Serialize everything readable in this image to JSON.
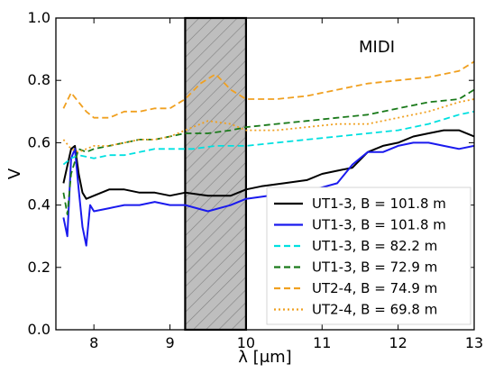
{
  "chart_data": {
    "type": "line",
    "title": "",
    "annotation": "MIDI",
    "xlabel": "λ [μm]",
    "ylabel": "V",
    "xlim": [
      7.5,
      13.0
    ],
    "ylim": [
      0.0,
      1.0
    ],
    "xticks": [
      "8",
      "9",
      "10",
      "11",
      "12",
      "13"
    ],
    "yticks": [
      "0.0",
      "0.2",
      "0.4",
      "0.6",
      "0.8",
      "1.0"
    ],
    "grid": false,
    "legend_position": "lower-right",
    "shaded_band": {
      "x_from": 9.2,
      "x_to": 10.0,
      "pattern": "hatched",
      "color": "#bebebe"
    },
    "series": [
      {
        "name": "UT1-3, B = 101.8 m",
        "color": "#000000",
        "style": "solid",
        "x": [
          7.6,
          7.7,
          7.75,
          7.8,
          7.85,
          7.9,
          8.0,
          8.2,
          8.4,
          8.6,
          8.8,
          9.0,
          9.2,
          9.5,
          9.8,
          10.0,
          10.2,
          10.5,
          10.8,
          11.0,
          11.2,
          11.4,
          11.6,
          11.8,
          12.0,
          12.2,
          12.4,
          12.6,
          12.8,
          13.0
        ],
        "y": [
          0.47,
          0.58,
          0.59,
          0.5,
          0.44,
          0.42,
          0.43,
          0.45,
          0.45,
          0.44,
          0.44,
          0.43,
          0.44,
          0.43,
          0.43,
          0.45,
          0.46,
          0.47,
          0.48,
          0.5,
          0.51,
          0.52,
          0.57,
          0.59,
          0.6,
          0.62,
          0.63,
          0.64,
          0.64,
          0.62
        ]
      },
      {
        "name": "UT1-3, B = 101.8 m",
        "color": "#1a1aee",
        "style": "solid",
        "x": [
          7.6,
          7.65,
          7.7,
          7.75,
          7.8,
          7.85,
          7.9,
          7.95,
          8.0,
          8.2,
          8.4,
          8.6,
          8.8,
          9.0,
          9.2,
          9.5,
          9.8,
          10.0,
          10.3,
          10.6,
          10.9,
          11.2,
          11.4,
          11.6,
          11.8,
          12.0,
          12.2,
          12.4,
          12.6,
          12.8,
          13.0
        ],
        "y": [
          0.36,
          0.3,
          0.55,
          0.58,
          0.45,
          0.33,
          0.27,
          0.4,
          0.38,
          0.39,
          0.4,
          0.4,
          0.41,
          0.4,
          0.4,
          0.38,
          0.4,
          0.42,
          0.43,
          0.44,
          0.45,
          0.47,
          0.53,
          0.57,
          0.57,
          0.59,
          0.6,
          0.6,
          0.59,
          0.58,
          0.59
        ]
      },
      {
        "name": "UT1-3, B = 82.2 m",
        "color": "#00e0e0",
        "style": "dashed",
        "x": [
          7.6,
          7.7,
          7.8,
          8.0,
          8.2,
          8.4,
          8.6,
          8.8,
          9.0,
          9.3,
          9.6,
          10.0,
          10.4,
          10.8,
          11.2,
          11.6,
          12.0,
          12.4,
          12.8,
          13.0
        ],
        "y": [
          0.53,
          0.55,
          0.56,
          0.55,
          0.56,
          0.56,
          0.57,
          0.58,
          0.58,
          0.58,
          0.59,
          0.59,
          0.6,
          0.61,
          0.62,
          0.63,
          0.64,
          0.66,
          0.69,
          0.7
        ]
      },
      {
        "name": "UT1-3, B = 72.9 m",
        "color": "#1a7a1a",
        "style": "dashed",
        "x": [
          7.6,
          7.65,
          7.7,
          7.8,
          7.9,
          8.0,
          8.2,
          8.4,
          8.6,
          8.8,
          9.0,
          9.2,
          9.5,
          9.8,
          10.0,
          10.4,
          10.8,
          11.2,
          11.6,
          12.0,
          12.4,
          12.8,
          13.0
        ],
        "y": [
          0.44,
          0.37,
          0.5,
          0.58,
          0.57,
          0.58,
          0.59,
          0.6,
          0.61,
          0.61,
          0.62,
          0.63,
          0.63,
          0.64,
          0.65,
          0.66,
          0.67,
          0.68,
          0.69,
          0.71,
          0.73,
          0.74,
          0.77
        ]
      },
      {
        "name": "UT2-4, B = 74.9 m",
        "color": "#f0a020",
        "style": "dashed",
        "x": [
          7.6,
          7.7,
          7.8,
          7.9,
          8.0,
          8.2,
          8.4,
          8.6,
          8.8,
          9.0,
          9.2,
          9.4,
          9.6,
          9.8,
          10.0,
          10.4,
          10.8,
          11.2,
          11.6,
          12.0,
          12.4,
          12.8,
          13.0
        ],
        "y": [
          0.71,
          0.76,
          0.73,
          0.7,
          0.68,
          0.68,
          0.7,
          0.7,
          0.71,
          0.71,
          0.74,
          0.79,
          0.82,
          0.77,
          0.74,
          0.74,
          0.75,
          0.77,
          0.79,
          0.8,
          0.81,
          0.83,
          0.86
        ]
      },
      {
        "name": "UT2-4, B = 69.8 m",
        "color": "#f0a020",
        "style": "dotted",
        "x": [
          7.6,
          7.7,
          7.8,
          7.9,
          8.0,
          8.2,
          8.4,
          8.6,
          8.8,
          9.0,
          9.2,
          9.5,
          9.8,
          10.0,
          10.4,
          10.8,
          11.2,
          11.6,
          12.0,
          12.4,
          12.8,
          13.0
        ],
        "y": [
          0.61,
          0.58,
          0.57,
          0.58,
          0.59,
          0.59,
          0.6,
          0.61,
          0.61,
          0.62,
          0.64,
          0.67,
          0.66,
          0.64,
          0.64,
          0.65,
          0.66,
          0.66,
          0.68,
          0.7,
          0.73,
          0.74
        ]
      }
    ]
  }
}
